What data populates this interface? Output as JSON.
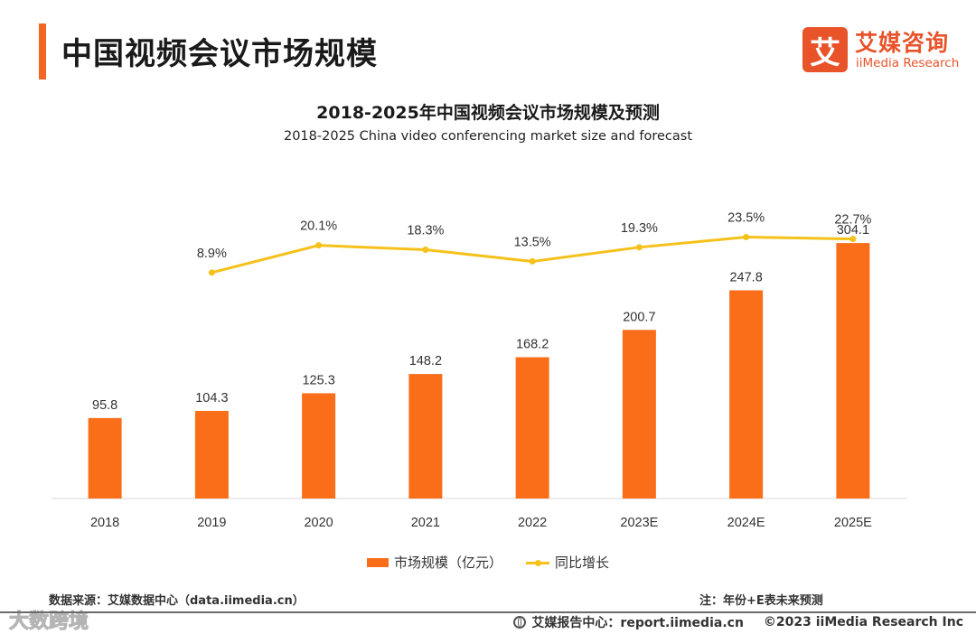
{
  "header": {
    "title": "中国视频会议市场规模",
    "accent_color": "#f26522"
  },
  "logo": {
    "mark": "艾",
    "cn": "艾媒咨询",
    "en": "iiMedia Research",
    "color": "#e8532a"
  },
  "chart_data": {
    "type": "bar",
    "title": "2018-2025年中国视频会议市场规模及预测",
    "subtitle": "2018-2025 China video conferencing market size and forecast",
    "categories": [
      "2018",
      "2019",
      "2020",
      "2021",
      "2022",
      "2023E",
      "2024E",
      "2025E"
    ],
    "series": [
      {
        "name": "市场规模（亿元）",
        "type": "bar",
        "color": "#fa6e1a",
        "values": [
          95.8,
          104.3,
          125.3,
          148.2,
          168.2,
          200.7,
          247.8,
          304.1
        ],
        "labels": [
          "95.8",
          "104.3",
          "125.3",
          "148.2",
          "168.2",
          "200.7",
          "247.8",
          "304.1"
        ]
      },
      {
        "name": "同比增长",
        "type": "line",
        "color": "#f5c11a",
        "values": [
          null,
          8.9,
          20.1,
          18.3,
          13.5,
          19.3,
          23.5,
          22.7
        ],
        "labels": [
          "",
          "8.9%",
          "20.1%",
          "18.3%",
          "13.5%",
          "19.3%",
          "23.5%",
          "22.7%"
        ]
      }
    ],
    "ylim": [
      0,
      330
    ],
    "y2lim": [
      -84,
      30
    ],
    "grid": false,
    "legend": "bottom-center"
  },
  "footer": {
    "source": "数据来源：艾媒数据中心（data.iimedia.cn）",
    "note": "注：年份+E表未来预测",
    "report": "艾媒报告中心：report.iimedia.cn",
    "copyright": "©2023  iiMedia Research  Inc",
    "watermark": "大数跨境"
  }
}
